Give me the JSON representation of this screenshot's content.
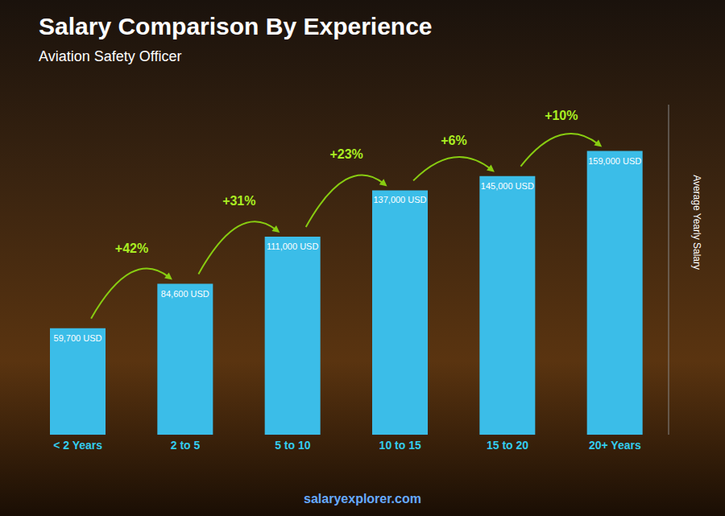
{
  "chart_data": {
    "type": "bar",
    "title": "Salary Comparison By Experience",
    "subtitle": "Aviation Safety Officer",
    "categories": [
      "< 2 Years",
      "2 to 5",
      "5 to 10",
      "10 to 15",
      "15 to 20",
      "20+ Years"
    ],
    "values": [
      59700,
      84600,
      111000,
      137000,
      145000,
      159000
    ],
    "value_labels": [
      "59,700 USD",
      "84,600 USD",
      "111,000 USD",
      "137,000 USD",
      "145,000 USD",
      "159,000 USD"
    ],
    "data_labels": true,
    "annotations": [
      "+42%",
      "+31%",
      "+23%",
      "+6%",
      "+10%",
      "salaryexplorer.com"
    ],
    "ylabel": "Average Yearly Salary",
    "ylim": [
      0,
      185000
    ],
    "yticks": [],
    "tick_labels": "x",
    "grid": false,
    "color": "#3bbde8"
  }
}
